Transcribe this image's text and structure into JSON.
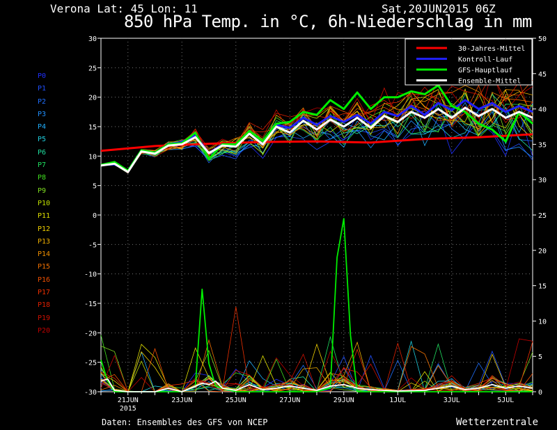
{
  "header": {
    "location": "Verona   Lat: 45 Lon: 11",
    "date": "Sat,20JUN2015 06Z",
    "title": "850 hPa Temp. in °C, 6h-Niederschlag in mm"
  },
  "footer": {
    "source": "Daten: Ensembles des GFS von NCEP",
    "brand": "Wetterzentrale"
  },
  "members": [
    {
      "label": "P0",
      "color": "#2030ff"
    },
    {
      "label": "P1",
      "color": "#2050ff"
    },
    {
      "label": "P2",
      "color": "#2070ff"
    },
    {
      "label": "P3",
      "color": "#2090ff"
    },
    {
      "label": "P4",
      "color": "#20b0ff"
    },
    {
      "label": "P5",
      "color": "#20d0e0"
    },
    {
      "label": "P6",
      "color": "#20e0a0"
    },
    {
      "label": "P7",
      "color": "#20e060"
    },
    {
      "label": "P8",
      "color": "#40e020"
    },
    {
      "label": "P9",
      "color": "#80e020"
    },
    {
      "label": "P10",
      "color": "#c0e000"
    },
    {
      "label": "P11",
      "color": "#e0e000"
    },
    {
      "label": "P12",
      "color": "#f0d000"
    },
    {
      "label": "P13",
      "color": "#f0b000"
    },
    {
      "label": "P14",
      "color": "#f09000"
    },
    {
      "label": "P15",
      "color": "#f07000"
    },
    {
      "label": "P16",
      "color": "#f05000"
    },
    {
      "label": "P17",
      "color": "#f03000"
    },
    {
      "label": "P18",
      "color": "#e02000"
    },
    {
      "label": "P19",
      "color": "#d01000"
    },
    {
      "label": "P20",
      "color": "#c00000"
    }
  ],
  "chart_data": {
    "type": "line",
    "title": "850 hPa Temp. in °C, 6h-Niederschlag in mm",
    "y_left": {
      "range": [
        -30,
        30
      ],
      "ticks": [
        "30",
        "25",
        "20",
        "15",
        "10",
        "5",
        "0",
        "-5",
        "-10",
        "-15",
        "-20",
        "-25",
        "-30"
      ]
    },
    "y_right": {
      "range": [
        0,
        50
      ],
      "ticks": [
        "50",
        "45",
        "40",
        "35",
        "30",
        "25",
        "20",
        "15",
        "10",
        "5",
        "0"
      ]
    },
    "x_ticks": [
      "21JUN",
      "23JUN",
      "25JUN",
      "27JUN",
      "29JUN",
      "1JUL",
      "3JUL",
      "5JUL"
    ],
    "x_tick_sublabel": "2015",
    "grid": true,
    "legend_position": "top-right",
    "x_range_days": [
      0,
      16
    ],
    "x_tick_days": [
      1,
      3,
      5,
      7,
      9,
      11,
      13,
      15
    ],
    "series": [
      {
        "name": "30-Jahres-Mittel",
        "color": "#ff0000",
        "axis": "left",
        "x": [
          0,
          2,
          4,
          6,
          8,
          10,
          12,
          14,
          16
        ],
        "y": [
          10.9,
          11.7,
          12.1,
          12.4,
          12.5,
          12.3,
          12.9,
          13.2,
          13.7
        ]
      },
      {
        "name": "Kontroll-Lauf",
        "color": "#2020ff",
        "axis": "left",
        "x": [
          0,
          0.5,
          1,
          1.5,
          2,
          2.5,
          3,
          3.5,
          4,
          4.5,
          5,
          5.5,
          6,
          6.5,
          7,
          7.5,
          8,
          8.5,
          9,
          9.5,
          10,
          10.5,
          11,
          11.5,
          12,
          12.5,
          13,
          13.5,
          14,
          14.5,
          15,
          15.5,
          16
        ],
        "y": [
          8.5,
          8.6,
          7.5,
          11.0,
          10.6,
          12.0,
          12.4,
          13.5,
          10.5,
          12.0,
          12.0,
          13.8,
          12.0,
          15.3,
          14.8,
          16.5,
          15.3,
          16.8,
          15.8,
          17.0,
          15.5,
          17.5,
          16.8,
          18.5,
          17.0,
          19.0,
          17.8,
          19.5,
          18.0,
          19.0,
          17.5,
          18.5,
          17.5
        ]
      },
      {
        "name": "GFS-Hauptlauf",
        "color": "#00ee00",
        "axis": "left",
        "x": [
          0,
          0.5,
          1,
          1.5,
          2,
          2.5,
          3,
          3.5,
          4,
          4.5,
          5,
          5.5,
          6,
          6.5,
          7,
          7.5,
          8,
          8.5,
          9,
          9.5,
          10,
          10.5,
          11,
          11.5,
          12,
          12.5,
          13,
          13.5,
          14,
          14.5,
          15,
          15.5,
          16
        ],
        "y": [
          8.5,
          9.0,
          7.5,
          11.0,
          10.6,
          12.0,
          12.2,
          14.0,
          9.5,
          12.0,
          12.0,
          14.3,
          12.5,
          15.5,
          15.8,
          17.5,
          17.0,
          19.5,
          18.0,
          20.8,
          18.0,
          20.0,
          20.0,
          21.0,
          20.5,
          22.0,
          18.5,
          17.5,
          15.5,
          14.5,
          12.5,
          17.5,
          15.5
        ]
      },
      {
        "name": "Ensemble-Mittel",
        "color": "#ffffff",
        "axis": "left",
        "x": [
          0,
          0.5,
          1,
          1.5,
          2,
          2.5,
          3,
          3.5,
          4,
          4.5,
          5,
          5.5,
          6,
          6.5,
          7,
          7.5,
          8,
          8.5,
          9,
          9.5,
          10,
          10.5,
          11,
          11.5,
          12,
          12.5,
          13,
          13.5,
          14,
          14.5,
          15,
          15.5,
          16
        ],
        "y": [
          8.4,
          8.7,
          7.3,
          10.8,
          10.4,
          11.8,
          12.0,
          13.2,
          10.5,
          11.8,
          11.6,
          13.8,
          12.0,
          15.0,
          14.0,
          16.0,
          14.5,
          16.2,
          15.0,
          16.5,
          14.8,
          16.8,
          15.8,
          17.5,
          16.5,
          18.0,
          16.5,
          18.2,
          16.8,
          18.0,
          16.5,
          17.5,
          16.5
        ]
      },
      {
        "name": "GFS-Hauptlauf Niederschlag",
        "color": "#00ee00",
        "axis": "right",
        "x": [
          0,
          0.25,
          0.5,
          1,
          3,
          3.5,
          3.75,
          4,
          4.25,
          4.5,
          5,
          7,
          8,
          8.5,
          8.75,
          9,
          9.25,
          9.5,
          10,
          12,
          14,
          16
        ],
        "y": [
          4.5,
          1.5,
          0,
          0,
          0,
          0.8,
          14.5,
          4.0,
          0.8,
          0.5,
          0,
          0,
          0,
          0.5,
          19.0,
          24.5,
          8.0,
          0,
          0,
          0,
          0,
          0
        ]
      },
      {
        "name": "Ensemble-Mittel Niederschlag",
        "color": "#ffffff",
        "axis": "right",
        "x": [
          0,
          0.25,
          0.5,
          1,
          2,
          2.5,
          3,
          3.5,
          3.75,
          4,
          4.25,
          4.5,
          5,
          5.5,
          6,
          6.5,
          7,
          7.5,
          8,
          8.5,
          9,
          9.5,
          10,
          11,
          12,
          12.5,
          13,
          13.5,
          14,
          14.5,
          15,
          15.5,
          16
        ],
        "y": [
          1.5,
          1.8,
          0.2,
          0,
          0,
          0.5,
          0,
          0.8,
          1.2,
          1.0,
          1.5,
          0.5,
          0.2,
          1.0,
          0.3,
          0.5,
          0.8,
          0.5,
          0.2,
          0.8,
          1.0,
          0.5,
          0.3,
          0.1,
          0.2,
          0.5,
          0.8,
          0.3,
          0.5,
          1.0,
          0.5,
          0.8,
          0.5
        ]
      }
    ]
  }
}
